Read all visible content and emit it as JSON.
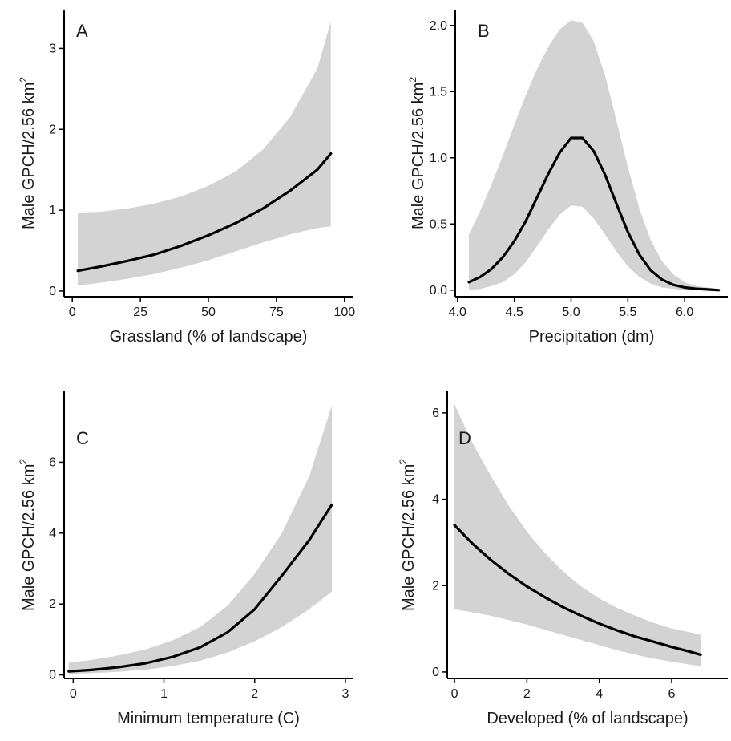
{
  "colors": {
    "band": "#d3d3d3",
    "line": "#000000",
    "axis": "#000000",
    "text": "#1a1a1a",
    "background": "#ffffff"
  },
  "chart_data": [
    {
      "type": "line",
      "panel_label": "A",
      "xlabel": "Grassland (% of landscape)",
      "ylabel_main": "Male GPCH/2.56 km",
      "ylabel_sup": "2",
      "xlim": [
        -3,
        103
      ],
      "ylim": [
        -0.07,
        3.48
      ],
      "xticks": [
        0,
        25,
        50,
        75,
        100
      ],
      "xtick_labels": [
        "0",
        "25",
        "50",
        "75",
        "100"
      ],
      "yticks": [
        0,
        1,
        2,
        3
      ],
      "ytick_labels": [
        "0",
        "1",
        "2",
        "3"
      ],
      "series": [
        {
          "x": [
            2,
            10,
            20,
            30,
            40,
            50,
            60,
            70,
            80,
            90,
            95
          ],
          "y": [
            0.25,
            0.3,
            0.37,
            0.45,
            0.56,
            0.69,
            0.84,
            1.02,
            1.24,
            1.5,
            1.7
          ],
          "lower": [
            0.07,
            0.1,
            0.15,
            0.21,
            0.29,
            0.38,
            0.49,
            0.6,
            0.7,
            0.78,
            0.8
          ],
          "upper": [
            0.97,
            0.98,
            1.02,
            1.08,
            1.17,
            1.3,
            1.48,
            1.75,
            2.15,
            2.75,
            3.33
          ]
        }
      ]
    },
    {
      "type": "line",
      "panel_label": "B",
      "xlabel": "Precipitation (dm)",
      "ylabel_main": "Male GPCH/2.56 km",
      "ylabel_sup": "2",
      "xlim": [
        3.98,
        6.38
      ],
      "ylim": [
        -0.05,
        2.12
      ],
      "xticks": [
        4.0,
        4.5,
        5.0,
        5.5,
        6.0
      ],
      "xtick_labels": [
        "4.0",
        "4.5",
        "5.0",
        "5.5",
        "6.0"
      ],
      "yticks": [
        0.0,
        0.5,
        1.0,
        1.5,
        2.0
      ],
      "ytick_labels": [
        "0.0",
        "0.5",
        "1.0",
        "1.5",
        "2.0"
      ],
      "series": [
        {
          "x": [
            4.1,
            4.2,
            4.3,
            4.4,
            4.5,
            4.6,
            4.7,
            4.8,
            4.9,
            5.0,
            5.1,
            5.2,
            5.3,
            5.4,
            5.5,
            5.6,
            5.7,
            5.8,
            5.9,
            6.0,
            6.1,
            6.2,
            6.3
          ],
          "y": [
            0.06,
            0.1,
            0.16,
            0.25,
            0.37,
            0.52,
            0.7,
            0.88,
            1.04,
            1.15,
            1.15,
            1.05,
            0.87,
            0.65,
            0.44,
            0.27,
            0.15,
            0.08,
            0.04,
            0.02,
            0.01,
            0.005,
            0.0
          ],
          "lower": [
            0.0,
            0.01,
            0.03,
            0.06,
            0.12,
            0.21,
            0.33,
            0.46,
            0.57,
            0.64,
            0.63,
            0.54,
            0.42,
            0.29,
            0.18,
            0.1,
            0.05,
            0.02,
            0.01,
            0.0,
            0.0,
            0.0,
            0.0
          ],
          "upper": [
            0.42,
            0.6,
            0.8,
            1.02,
            1.25,
            1.47,
            1.67,
            1.84,
            1.97,
            2.04,
            2.02,
            1.88,
            1.62,
            1.28,
            0.93,
            0.62,
            0.38,
            0.22,
            0.12,
            0.06,
            0.03,
            0.02,
            0.01
          ]
        }
      ]
    },
    {
      "type": "line",
      "panel_label": "C",
      "xlabel": "Minimum temperature (C)",
      "ylabel_main": "Male GPCH/2.56 km",
      "ylabel_sup": "2",
      "xlim": [
        -0.1,
        3.08
      ],
      "ylim": [
        -0.1,
        8.0
      ],
      "xticks": [
        0,
        1,
        2,
        3
      ],
      "xtick_labels": [
        "0",
        "1",
        "2",
        "3"
      ],
      "yticks": [
        0,
        2,
        4,
        6
      ],
      "ytick_labels": [
        "0",
        "2",
        "4",
        "6"
      ],
      "series": [
        {
          "x": [
            -0.05,
            0.2,
            0.5,
            0.8,
            1.1,
            1.4,
            1.7,
            2.0,
            2.3,
            2.6,
            2.85
          ],
          "y": [
            0.1,
            0.14,
            0.22,
            0.33,
            0.51,
            0.78,
            1.2,
            1.85,
            2.8,
            3.8,
            4.8
          ],
          "lower": [
            0.03,
            0.05,
            0.09,
            0.15,
            0.25,
            0.4,
            0.63,
            0.95,
            1.35,
            1.85,
            2.35
          ],
          "upper": [
            0.35,
            0.42,
            0.55,
            0.72,
            0.98,
            1.35,
            1.95,
            2.85,
            4.0,
            5.6,
            7.6
          ]
        }
      ]
    },
    {
      "type": "line",
      "panel_label": "D",
      "xlabel": "Developed (% of landscape)",
      "ylabel_main": "Male GPCH/2.56 km",
      "ylabel_sup": "2",
      "xlim": [
        -0.2,
        7.55
      ],
      "ylim": [
        -0.15,
        6.5
      ],
      "xticks": [
        0,
        2,
        4,
        6
      ],
      "xtick_labels": [
        "0",
        "2",
        "4",
        "6"
      ],
      "yticks": [
        0,
        2,
        4,
        6
      ],
      "ytick_labels": [
        "0",
        "2",
        "4",
        "6"
      ],
      "series": [
        {
          "x": [
            0,
            0.5,
            1,
            1.5,
            2,
            2.5,
            3,
            3.5,
            4,
            4.5,
            5,
            5.5,
            6,
            6.5,
            6.8
          ],
          "y": [
            3.4,
            2.97,
            2.6,
            2.27,
            1.98,
            1.73,
            1.5,
            1.3,
            1.12,
            0.96,
            0.82,
            0.7,
            0.58,
            0.47,
            0.4
          ],
          "lower": [
            1.45,
            1.38,
            1.3,
            1.2,
            1.1,
            0.98,
            0.86,
            0.74,
            0.62,
            0.5,
            0.4,
            0.31,
            0.24,
            0.17,
            0.13
          ],
          "upper": [
            6.2,
            5.3,
            4.55,
            3.85,
            3.25,
            2.75,
            2.33,
            1.98,
            1.7,
            1.48,
            1.3,
            1.14,
            1.01,
            0.92,
            0.86
          ]
        }
      ]
    }
  ]
}
